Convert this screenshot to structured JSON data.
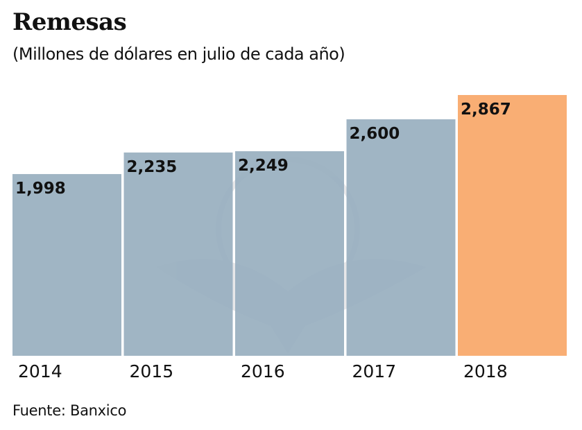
{
  "chart_data": {
    "type": "bar",
    "title": "Remesas",
    "subtitle": "(Millones de dólares en julio de cada año)",
    "categories": [
      "2014",
      "2015",
      "2016",
      "2017",
      "2018"
    ],
    "values": [
      1998,
      2235,
      2249,
      2600,
      2867
    ],
    "data_labels": [
      "1,998",
      "2,235",
      "2,249",
      "2,600",
      "2,867"
    ],
    "ylim": [
      0,
      2867
    ],
    "grid": false,
    "colors": {
      "default": "#98afbf",
      "highlight": "#f9ae74"
    },
    "highlight_index": 4,
    "source": "Fuente: Banxico"
  }
}
